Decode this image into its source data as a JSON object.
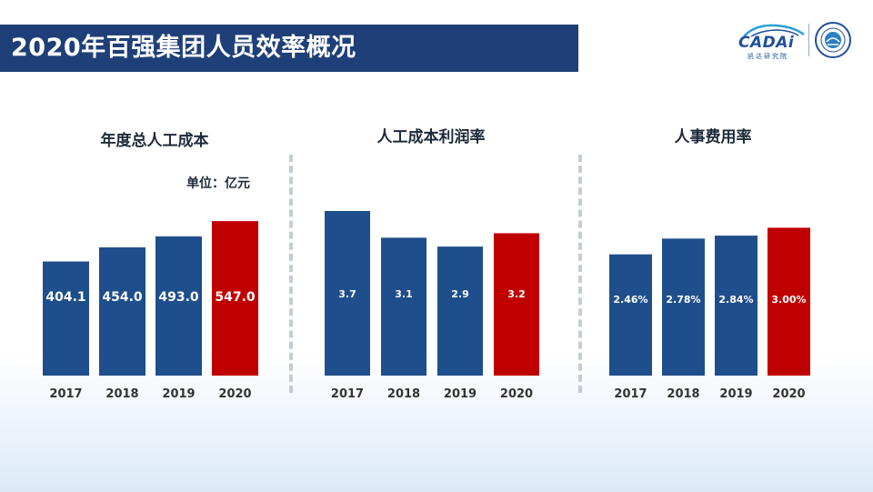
{
  "page": {
    "title": "2020年百强集团人员效率概况"
  },
  "logos": {
    "cadai_text": "CADAi",
    "cadai_sub": "凯达研究院",
    "icon_cadai": "cadai-car-logo",
    "icon_seal": "association-seal"
  },
  "colors": {
    "bar": "#1f4e8c",
    "highlight": "#c00000",
    "title_bar": "#1f3f78"
  },
  "chart_data": [
    {
      "type": "bar",
      "title": "年度总人工成本",
      "unit": "单位：亿元",
      "categories": [
        "2017",
        "2018",
        "2019",
        "2020"
      ],
      "values": [
        404.1,
        454.0,
        493.0,
        547.0
      ],
      "labels": [
        "404.1",
        "454.0",
        "493.0",
        "547.0"
      ],
      "highlight_index": 3,
      "ylim": [
        0,
        570
      ],
      "grid": false,
      "legend": "none"
    },
    {
      "type": "bar",
      "title": "人工成本利润率",
      "unit": "",
      "categories": [
        "2017",
        "2018",
        "2019",
        "2020"
      ],
      "values": [
        3.7,
        3.1,
        2.9,
        3.2
      ],
      "labels": [
        "3.7",
        "3.1",
        "2.9",
        "3.2"
      ],
      "highlight_index": 3,
      "ylim": [
        0,
        3.7
      ],
      "grid": false,
      "legend": "none"
    },
    {
      "type": "bar",
      "title": "人事费用率",
      "unit": "",
      "categories": [
        "2017",
        "2018",
        "2019",
        "2020"
      ],
      "values": [
        2.46,
        2.78,
        2.84,
        3.0
      ],
      "labels": [
        "2.46%",
        "2.78%",
        "2.84%",
        "3.00%"
      ],
      "highlight_index": 3,
      "ylim": [
        0,
        3.1
      ],
      "grid": false,
      "legend": "none"
    }
  ]
}
